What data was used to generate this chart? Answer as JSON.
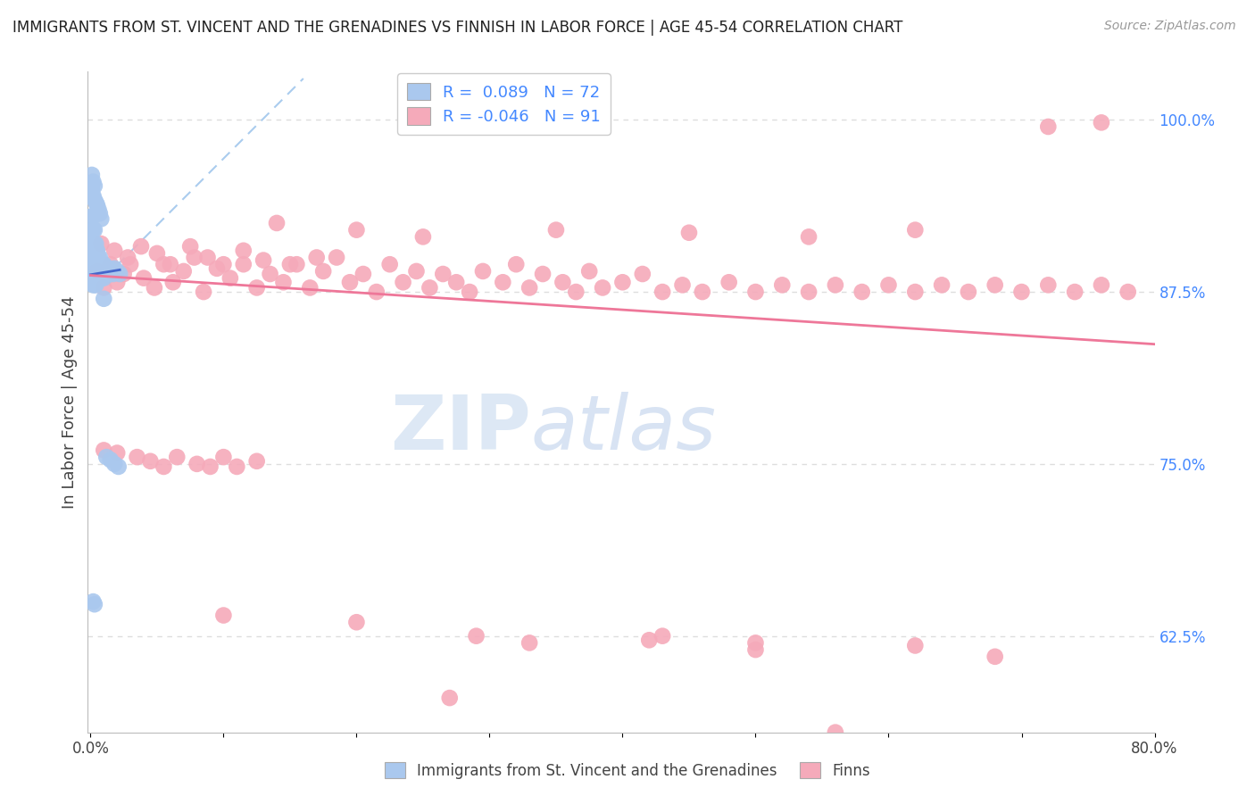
{
  "title": "IMMIGRANTS FROM ST. VINCENT AND THE GRENADINES VS FINNISH IN LABOR FORCE | AGE 45-54 CORRELATION CHART",
  "source": "Source: ZipAtlas.com",
  "ylabel": "In Labor Force | Age 45-54",
  "xlim": [
    -0.002,
    0.8
  ],
  "ylim": [
    0.555,
    1.035
  ],
  "xtick_positions": [
    0.0,
    0.1,
    0.2,
    0.3,
    0.4,
    0.5,
    0.6,
    0.7,
    0.8
  ],
  "xticklabels": [
    "0.0%",
    "",
    "",
    "",
    "",
    "",
    "",
    "",
    "80.0%"
  ],
  "ytick_positions": [
    0.625,
    0.75,
    0.875,
    1.0
  ],
  "yticklabels": [
    "62.5%",
    "75.0%",
    "87.5%",
    "100.0%"
  ],
  "blue_R": 0.089,
  "blue_N": 72,
  "pink_R": -0.046,
  "pink_N": 91,
  "blue_color": "#aac8ee",
  "pink_color": "#f5aaba",
  "blue_line_color": "#4466cc",
  "pink_line_color": "#ee7799",
  "legend_label_blue": "Immigrants from St. Vincent and the Grenadines",
  "legend_label_pink": "Finns",
  "watermark_zip": "ZIP",
  "watermark_atlas": "atlas",
  "grid_color": "#dddddd",
  "ref_line_color": "#aaccee",
  "blue_scatter_x": [
    0.001,
    0.001,
    0.001,
    0.001,
    0.001,
    0.002,
    0.002,
    0.002,
    0.002,
    0.002,
    0.002,
    0.003,
    0.003,
    0.003,
    0.003,
    0.003,
    0.003,
    0.004,
    0.004,
    0.004,
    0.004,
    0.004,
    0.004,
    0.005,
    0.005,
    0.005,
    0.005,
    0.005,
    0.006,
    0.006,
    0.006,
    0.006,
    0.007,
    0.007,
    0.007,
    0.007,
    0.008,
    0.008,
    0.008,
    0.009,
    0.009,
    0.01,
    0.01,
    0.01,
    0.011,
    0.012,
    0.013,
    0.014,
    0.015,
    0.016,
    0.017,
    0.018,
    0.02,
    0.022,
    0.001,
    0.001,
    0.002,
    0.002,
    0.003,
    0.003,
    0.004,
    0.005,
    0.006,
    0.007,
    0.008,
    0.01,
    0.012,
    0.015,
    0.018,
    0.021,
    0.002,
    0.003
  ],
  "blue_scatter_y": [
    0.93,
    0.92,
    0.91,
    0.9,
    0.89,
    0.93,
    0.92,
    0.91,
    0.9,
    0.89,
    0.88,
    0.92,
    0.91,
    0.9,
    0.895,
    0.89,
    0.88,
    0.91,
    0.905,
    0.9,
    0.895,
    0.89,
    0.88,
    0.905,
    0.9,
    0.895,
    0.89,
    0.885,
    0.9,
    0.895,
    0.89,
    0.885,
    0.9,
    0.895,
    0.89,
    0.885,
    0.895,
    0.89,
    0.885,
    0.895,
    0.89,
    0.895,
    0.89,
    0.885,
    0.89,
    0.89,
    0.888,
    0.892,
    0.888,
    0.89,
    0.888,
    0.892,
    0.89,
    0.888,
    0.96,
    0.95,
    0.955,
    0.945,
    0.952,
    0.942,
    0.94,
    0.938,
    0.935,
    0.932,
    0.928,
    0.87,
    0.755,
    0.753,
    0.75,
    0.748,
    0.65,
    0.648
  ],
  "pink_scatter_x": [
    0.005,
    0.01,
    0.015,
    0.02,
    0.025,
    0.03,
    0.04,
    0.048,
    0.055,
    0.062,
    0.07,
    0.078,
    0.085,
    0.095,
    0.105,
    0.115,
    0.125,
    0.135,
    0.145,
    0.155,
    0.165,
    0.175,
    0.185,
    0.195,
    0.205,
    0.215,
    0.225,
    0.235,
    0.245,
    0.255,
    0.265,
    0.275,
    0.285,
    0.295,
    0.31,
    0.32,
    0.33,
    0.34,
    0.355,
    0.365,
    0.375,
    0.385,
    0.4,
    0.415,
    0.43,
    0.445,
    0.46,
    0.48,
    0.5,
    0.52,
    0.54,
    0.56,
    0.58,
    0.6,
    0.62,
    0.64,
    0.66,
    0.68,
    0.7,
    0.72,
    0.74,
    0.76,
    0.78,
    0.008,
    0.018,
    0.028,
    0.038,
    0.05,
    0.06,
    0.075,
    0.088,
    0.1,
    0.115,
    0.13,
    0.15,
    0.17,
    0.01,
    0.02,
    0.035,
    0.045,
    0.055,
    0.065,
    0.08,
    0.09,
    0.1,
    0.11,
    0.125,
    0.29,
    0.42,
    0.5,
    0.62
  ],
  "pink_scatter_y": [
    0.89,
    0.878,
    0.895,
    0.882,
    0.888,
    0.895,
    0.885,
    0.878,
    0.895,
    0.882,
    0.89,
    0.9,
    0.875,
    0.892,
    0.885,
    0.895,
    0.878,
    0.888,
    0.882,
    0.895,
    0.878,
    0.89,
    0.9,
    0.882,
    0.888,
    0.875,
    0.895,
    0.882,
    0.89,
    0.878,
    0.888,
    0.882,
    0.875,
    0.89,
    0.882,
    0.895,
    0.878,
    0.888,
    0.882,
    0.875,
    0.89,
    0.878,
    0.882,
    0.888,
    0.875,
    0.88,
    0.875,
    0.882,
    0.875,
    0.88,
    0.875,
    0.88,
    0.875,
    0.88,
    0.875,
    0.88,
    0.875,
    0.88,
    0.875,
    0.88,
    0.875,
    0.88,
    0.875,
    0.91,
    0.905,
    0.9,
    0.908,
    0.903,
    0.895,
    0.908,
    0.9,
    0.895,
    0.905,
    0.898,
    0.895,
    0.9,
    0.76,
    0.758,
    0.755,
    0.752,
    0.748,
    0.755,
    0.75,
    0.748,
    0.755,
    0.748,
    0.752,
    0.625,
    0.622,
    0.62,
    0.618
  ],
  "pink_extra_x": [
    0.14,
    0.2,
    0.25,
    0.35,
    0.45,
    0.54,
    0.62,
    0.72,
    0.76,
    0.1,
    0.2,
    0.33,
    0.5,
    0.68,
    0.27,
    0.43,
    0.56
  ],
  "pink_extra_y": [
    0.925,
    0.92,
    0.915,
    0.92,
    0.918,
    0.915,
    0.92,
    0.995,
    0.998,
    0.64,
    0.635,
    0.62,
    0.615,
    0.61,
    0.58,
    0.625,
    0.555
  ]
}
